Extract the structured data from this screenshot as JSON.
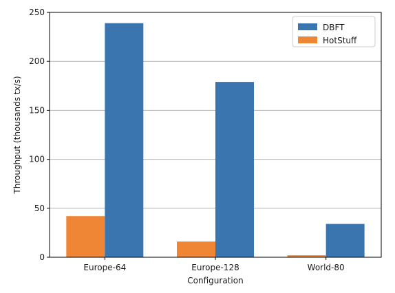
{
  "chart_data": {
    "type": "bar",
    "title": "",
    "xlabel": "Configuration",
    "ylabel": "Throughput (thousands tx/s)",
    "categories": [
      "Europe-64",
      "Europe-128",
      "World-80"
    ],
    "series": [
      {
        "name": "HotStuff",
        "color": "#ef8636",
        "values": [
          42,
          16,
          2
        ]
      },
      {
        "name": "DBFT",
        "color": "#3b75af",
        "values": [
          239,
          179,
          34
        ]
      }
    ],
    "legend_order": [
      "DBFT",
      "HotStuff"
    ],
    "legend_placement": "top-right",
    "ylim": [
      0,
      250
    ],
    "yticks": [
      0,
      50,
      100,
      150,
      200,
      250
    ],
    "grid": "horizontal"
  }
}
